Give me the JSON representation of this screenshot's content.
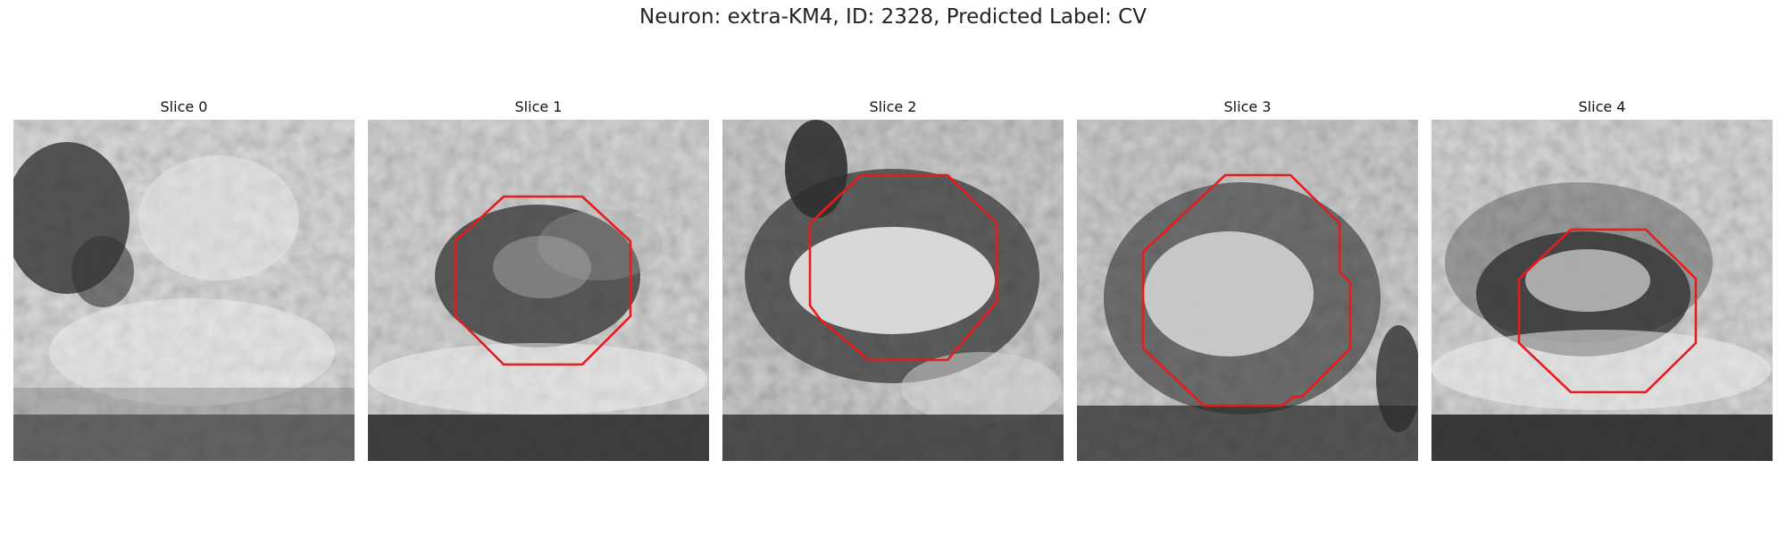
{
  "figure": {
    "title": "Neuron: extra-KM4, ID: 2328, Predicted Label: CV"
  },
  "panels": [
    {
      "title": "Slice 0",
      "has_contour": false
    },
    {
      "title": "Slice 1",
      "has_contour": true
    },
    {
      "title": "Slice 2",
      "has_contour": true
    },
    {
      "title": "Slice 3",
      "has_contour": true
    },
    {
      "title": "Slice 4",
      "has_contour": true
    }
  ],
  "colors": {
    "contour": "#e61b1b",
    "colormap": "grayscale"
  }
}
